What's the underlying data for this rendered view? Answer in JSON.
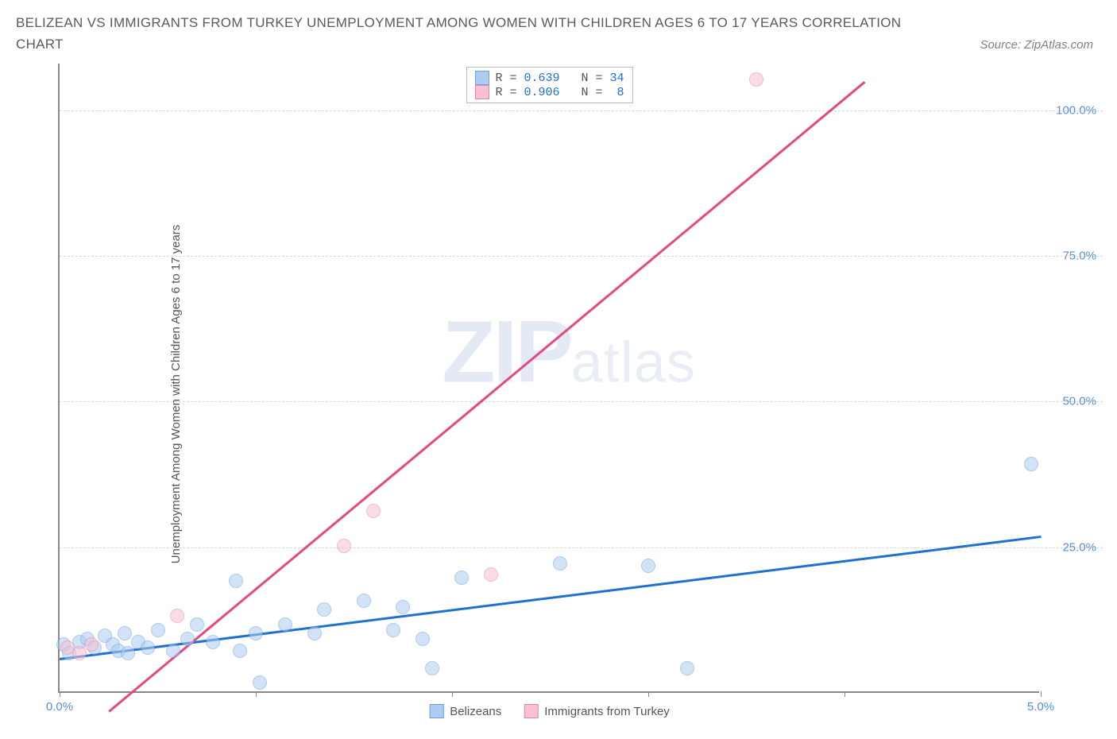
{
  "title": "BELIZEAN VS IMMIGRANTS FROM TURKEY UNEMPLOYMENT AMONG WOMEN WITH CHILDREN AGES 6 TO 17 YEARS CORRELATION CHART",
  "source_label": "Source: ZipAtlas.com",
  "ylabel": "Unemployment Among Women with Children Ages 6 to 17 years",
  "watermark": {
    "part1": "ZIP",
    "part2": "atlas"
  },
  "chart": {
    "type": "scatter",
    "xlim": [
      0.0,
      5.0
    ],
    "ylim": [
      0.0,
      108.0
    ],
    "xticks": [
      0.0,
      1.0,
      2.0,
      3.0,
      4.0,
      5.0
    ],
    "xticks_labeled": [
      {
        "v": 0.0,
        "label": "0.0%"
      },
      {
        "v": 5.0,
        "label": "5.0%"
      }
    ],
    "yticks": [
      {
        "v": 25.0,
        "label": "25.0%"
      },
      {
        "v": 50.0,
        "label": "50.0%"
      },
      {
        "v": 75.0,
        "label": "75.0%"
      },
      {
        "v": 100.0,
        "label": "100.0%"
      }
    ],
    "grid_color": "#d8d8d8",
    "axis_color": "#888888",
    "background_color": "#ffffff",
    "series": [
      {
        "name": "Belizeans",
        "fill_color": "#aeccf2",
        "stroke_color": "#6fa0de",
        "line_color": "#1f6fd4",
        "fill_opacity": 0.55,
        "marker_radius": 9,
        "R": "0.639",
        "N": "34",
        "trend": {
          "x1": 0.0,
          "y1": 6.0,
          "x2": 5.0,
          "y2": 27.0
        },
        "points": [
          {
            "x": 0.02,
            "y": 8.0
          },
          {
            "x": 0.05,
            "y": 6.5
          },
          {
            "x": 0.1,
            "y": 8.5
          },
          {
            "x": 0.14,
            "y": 9.0
          },
          {
            "x": 0.18,
            "y": 7.5
          },
          {
            "x": 0.23,
            "y": 9.5
          },
          {
            "x": 0.27,
            "y": 8.0
          },
          {
            "x": 0.3,
            "y": 7.0
          },
          {
            "x": 0.33,
            "y": 10.0
          },
          {
            "x": 0.35,
            "y": 6.5
          },
          {
            "x": 0.4,
            "y": 8.5
          },
          {
            "x": 0.45,
            "y": 7.5
          },
          {
            "x": 0.5,
            "y": 10.5
          },
          {
            "x": 0.58,
            "y": 7.0
          },
          {
            "x": 0.65,
            "y": 9.0
          },
          {
            "x": 0.7,
            "y": 11.5
          },
          {
            "x": 0.78,
            "y": 8.5
          },
          {
            "x": 0.9,
            "y": 19.0
          },
          {
            "x": 0.92,
            "y": 7.0
          },
          {
            "x": 1.0,
            "y": 10.0
          },
          {
            "x": 1.02,
            "y": 1.5
          },
          {
            "x": 1.15,
            "y": 11.5
          },
          {
            "x": 1.3,
            "y": 10.0
          },
          {
            "x": 1.35,
            "y": 14.0
          },
          {
            "x": 1.55,
            "y": 15.5
          },
          {
            "x": 1.7,
            "y": 10.5
          },
          {
            "x": 1.75,
            "y": 14.5
          },
          {
            "x": 1.85,
            "y": 9.0
          },
          {
            "x": 1.9,
            "y": 4.0
          },
          {
            "x": 2.05,
            "y": 19.5
          },
          {
            "x": 2.55,
            "y": 22.0
          },
          {
            "x": 3.2,
            "y": 4.0
          },
          {
            "x": 3.0,
            "y": 21.5
          },
          {
            "x": 4.95,
            "y": 39.0
          }
        ]
      },
      {
        "name": "Immigrants from Turkey",
        "fill_color": "#f6c1d0",
        "stroke_color": "#e985a6",
        "line_color": "#e54a7b",
        "fill_opacity": 0.55,
        "marker_radius": 9,
        "R": "0.906",
        "N": "8",
        "trend": {
          "x1": 0.25,
          "y1": -3.0,
          "x2": 4.1,
          "y2": 105.0
        },
        "points": [
          {
            "x": 0.04,
            "y": 7.5
          },
          {
            "x": 0.1,
            "y": 6.5
          },
          {
            "x": 0.16,
            "y": 8.0
          },
          {
            "x": 0.6,
            "y": 13.0
          },
          {
            "x": 1.45,
            "y": 25.0
          },
          {
            "x": 1.6,
            "y": 31.0
          },
          {
            "x": 2.2,
            "y": 20.0
          },
          {
            "x": 3.55,
            "y": 105.0
          }
        ]
      }
    ],
    "legend_top": {
      "rows": [
        {
          "series_idx": 0,
          "text_prefix": "R = ",
          "text_mid": "   N = "
        },
        {
          "series_idx": 1,
          "text_prefix": "R = ",
          "text_mid": "   N = "
        }
      ]
    },
    "legend_bottom": {
      "items": [
        {
          "series_idx": 0
        },
        {
          "series_idx": 1
        }
      ]
    }
  }
}
